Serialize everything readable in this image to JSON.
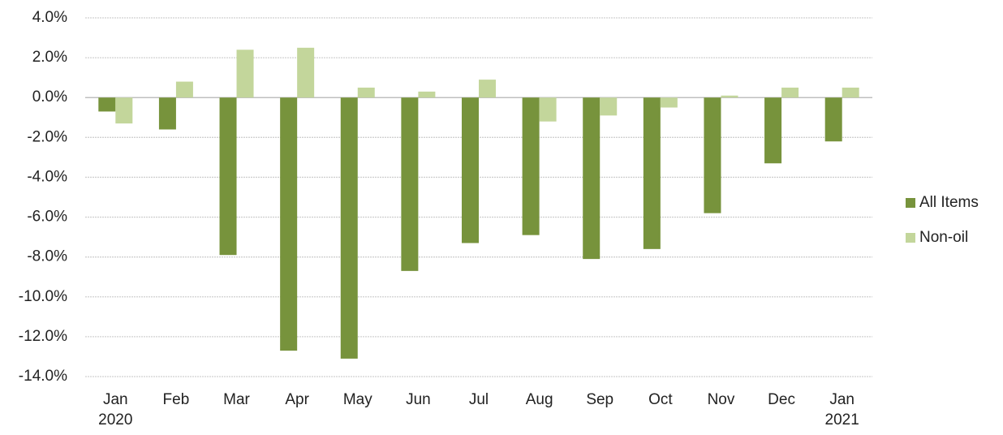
{
  "chart_data": {
    "type": "bar",
    "categories": [
      "Jan 2020",
      "Feb",
      "Mar",
      "Apr",
      "May",
      "Jun",
      "Jul",
      "Aug",
      "Sep",
      "Oct",
      "Nov",
      "Dec",
      "Jan 2021"
    ],
    "series": [
      {
        "name": "All Items",
        "color": "#77933c",
        "values": [
          -0.7,
          -1.6,
          -7.9,
          -12.7,
          -13.1,
          -8.7,
          -7.3,
          -6.9,
          -8.1,
          -7.6,
          -5.8,
          -3.3,
          -2.2
        ]
      },
      {
        "name": "Non-oil",
        "color": "#c3d69b",
        "values": [
          -1.3,
          0.8,
          2.4,
          2.5,
          0.5,
          0.3,
          0.9,
          -1.2,
          -0.9,
          -0.5,
          0.1,
          0.5,
          0.5
        ]
      }
    ],
    "ylim": [
      -14,
      4
    ],
    "yticks": [
      {
        "value": 4,
        "label": "4.0%"
      },
      {
        "value": 2,
        "label": "2.0%"
      },
      {
        "value": 0,
        "label": "0.0%"
      },
      {
        "value": -2,
        "label": "-2.0%"
      },
      {
        "value": -4,
        "label": "-4.0%"
      },
      {
        "value": -6,
        "label": "-6.0%"
      },
      {
        "value": -8,
        "label": "-8.0%"
      },
      {
        "value": -10,
        "label": "-10.0%"
      },
      {
        "value": -12,
        "label": "-12.0%"
      },
      {
        "value": -14,
        "label": "-14.0%"
      }
    ],
    "grid": true,
    "legend": "right"
  }
}
